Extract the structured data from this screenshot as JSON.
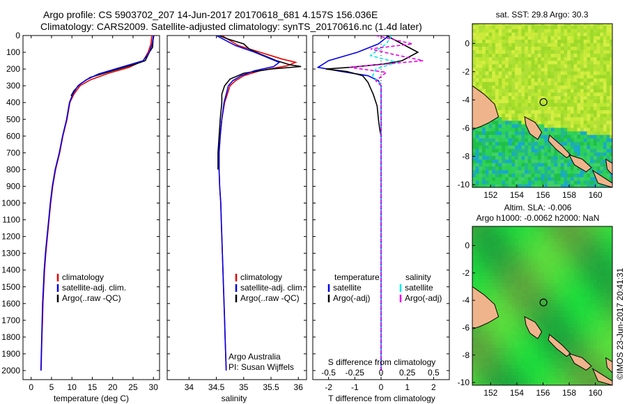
{
  "titles": {
    "line1": "Argo profile: CS 5903702_207 14-Jun-2017 20170618_681 4.157S 156.036E",
    "line2": "Climatology: CARS2009. Satellite-adjusted climatology: synTS_20170616.nc (1.4d later)"
  },
  "stamp": "©IMOS 23-Jun-2017 20:41:31",
  "chart_data": [
    {
      "type": "line",
      "panel": "temperature",
      "xlabel": "temperature (deg C)",
      "xlim": [
        -2,
        31.5
      ],
      "xticks": [
        0,
        5,
        10,
        15,
        20,
        25,
        30
      ],
      "ylim": [
        2050,
        0
      ],
      "yticks": [
        0,
        100,
        200,
        300,
        400,
        500,
        600,
        700,
        800,
        900,
        1000,
        1100,
        1200,
        1300,
        1400,
        1500,
        1600,
        1700,
        1800,
        1900,
        2000
      ],
      "legend": [
        "climatology",
        "satellite-adj. clim.",
        "Argo(..raw -QC)"
      ],
      "series": [
        {
          "name": "climatology",
          "color": "#e60000",
          "points": [
            [
              29.6,
              0
            ],
            [
              29.4,
              50
            ],
            [
              28.7,
              100
            ],
            [
              27.5,
              150
            ],
            [
              24.0,
              190
            ],
            [
              19.0,
              225
            ],
            [
              14.5,
              265
            ],
            [
              12.0,
              300
            ],
            [
              10.5,
              350
            ],
            [
              9.5,
              400
            ],
            [
              8.8,
              500
            ],
            [
              7.8,
              600
            ],
            [
              7.0,
              700
            ],
            [
              6.0,
              800
            ],
            [
              5.3,
              900
            ],
            [
              4.8,
              1000
            ],
            [
              4.4,
              1100
            ],
            [
              4.0,
              1200
            ],
            [
              3.6,
              1300
            ],
            [
              3.3,
              1400
            ],
            [
              3.1,
              1500
            ],
            [
              2.9,
              1600
            ],
            [
              2.8,
              1700
            ],
            [
              2.65,
              1800
            ],
            [
              2.55,
              1900
            ],
            [
              2.45,
              2000
            ]
          ]
        },
        {
          "name": "satellite-adj. clim.",
          "color": "#0000e6",
          "points": [
            [
              30.0,
              0
            ],
            [
              29.7,
              50
            ],
            [
              29.0,
              100
            ],
            [
              27.5,
              150
            ],
            [
              22.0,
              190
            ],
            [
              16.5,
              230
            ],
            [
              13.5,
              265
            ],
            [
              11.5,
              300
            ],
            [
              10.2,
              350
            ],
            [
              9.4,
              400
            ],
            [
              8.7,
              500
            ],
            [
              7.7,
              600
            ],
            [
              6.9,
              700
            ],
            [
              5.9,
              800
            ],
            [
              5.2,
              900
            ],
            [
              4.7,
              1000
            ],
            [
              4.3,
              1100
            ],
            [
              3.9,
              1200
            ],
            [
              3.5,
              1300
            ],
            [
              3.2,
              1400
            ],
            [
              3.0,
              1500
            ],
            [
              2.8,
              1600
            ],
            [
              2.7,
              1700
            ],
            [
              2.6,
              1800
            ],
            [
              2.5,
              1900
            ],
            [
              2.4,
              2000
            ]
          ]
        },
        {
          "name": "Argo(..raw -QC)",
          "color": "#000000",
          "points": [
            [
              30.1,
              0
            ],
            [
              29.9,
              30
            ],
            [
              29.8,
              70
            ],
            [
              29.0,
              100
            ],
            [
              28.0,
              150
            ],
            [
              25.0,
              175
            ],
            [
              20.0,
              210
            ],
            [
              14.5,
              250
            ],
            [
              12.0,
              290
            ],
            [
              10.5,
              330
            ],
            [
              9.8,
              360
            ]
          ]
        }
      ]
    },
    {
      "type": "line",
      "panel": "salinity",
      "xlabel": "salinity",
      "xlim": [
        33.6,
        36.15
      ],
      "xticks": [
        34,
        34.5,
        35,
        35.5,
        36
      ],
      "ylim": [
        2050,
        0
      ],
      "legend": [
        "climatology",
        "satellite-adj. clim.",
        "Argo(..raw -QC)"
      ],
      "annotation": [
        "Argo Australia",
        "PI: Susan Wijffels"
      ],
      "series": [
        {
          "name": "climatology",
          "color": "#e60000",
          "points": [
            [
              34.6,
              0
            ],
            [
              34.9,
              60
            ],
            [
              35.3,
              100
            ],
            [
              35.7,
              140
            ],
            [
              35.95,
              160
            ],
            [
              35.8,
              180
            ],
            [
              35.3,
              210
            ],
            [
              35.0,
              240
            ],
            [
              34.85,
              270
            ],
            [
              34.75,
              300
            ],
            [
              34.7,
              350
            ],
            [
              34.65,
              400
            ],
            [
              34.6,
              500
            ],
            [
              34.57,
              600
            ],
            [
              34.55,
              700
            ],
            [
              34.55,
              800
            ],
            [
              34.56,
              900
            ],
            [
              34.58,
              1000
            ],
            [
              34.59,
              1100
            ],
            [
              34.6,
              1200
            ],
            [
              34.61,
              1300
            ],
            [
              34.62,
              1400
            ],
            [
              34.63,
              1500
            ],
            [
              34.64,
              1600
            ],
            [
              34.65,
              1700
            ],
            [
              34.66,
              1800
            ],
            [
              34.67,
              1900
            ],
            [
              34.68,
              2000
            ]
          ]
        },
        {
          "name": "satellite-adj. clim.",
          "color": "#0000e6",
          "points": [
            [
              34.5,
              0
            ],
            [
              34.85,
              60
            ],
            [
              35.2,
              100
            ],
            [
              35.5,
              140
            ],
            [
              35.65,
              160
            ],
            [
              35.55,
              185
            ],
            [
              35.2,
              210
            ],
            [
              34.95,
              240
            ],
            [
              34.8,
              270
            ],
            [
              34.72,
              300
            ],
            [
              34.68,
              350
            ],
            [
              34.64,
              400
            ],
            [
              34.6,
              500
            ],
            [
              34.57,
              600
            ],
            [
              34.55,
              700
            ],
            [
              34.55,
              800
            ],
            [
              34.56,
              900
            ],
            [
              34.58,
              1000
            ],
            [
              34.59,
              1100
            ],
            [
              34.6,
              1200
            ],
            [
              34.61,
              1300
            ],
            [
              34.62,
              1400
            ],
            [
              34.63,
              1500
            ],
            [
              34.64,
              1600
            ],
            [
              34.65,
              1700
            ],
            [
              34.66,
              1800
            ],
            [
              34.67,
              1900
            ],
            [
              34.68,
              2000
            ]
          ]
        },
        {
          "name": "Argo(..raw -QC)",
          "color": "#000000",
          "points": [
            [
              34.55,
              0
            ],
            [
              34.7,
              20
            ],
            [
              35.0,
              50
            ],
            [
              35.1,
              80
            ],
            [
              35.3,
              110
            ],
            [
              35.6,
              150
            ],
            [
              35.85,
              175
            ],
            [
              36.05,
              185
            ],
            [
              35.5,
              200
            ],
            [
              35.0,
              225
            ],
            [
              34.75,
              260
            ],
            [
              34.65,
              300
            ],
            [
              34.6,
              350
            ],
            [
              34.6,
              400
            ],
            [
              34.57,
              500
            ],
            [
              34.55,
              600
            ],
            [
              34.53,
              700
            ],
            [
              34.53,
              800
            ]
          ]
        }
      ]
    },
    {
      "type": "line",
      "panel": "difference",
      "xlabel": "T difference from climatology",
      "xlabel_top": "S difference from climatology",
      "xlim": [
        -2.6,
        2.6
      ],
      "xticks": [
        -2,
        -1,
        0,
        1,
        2
      ],
      "xticks_top": [
        -0.5,
        -0.25,
        0,
        0.25,
        0.5
      ],
      "ylim": [
        2050,
        0
      ],
      "legend": {
        "temperature": [
          "temperature",
          "satellite",
          "Argo(-adj)"
        ],
        "salinity": [
          "salinity",
          "satellite",
          "Argo(-adj)"
        ]
      },
      "series": [
        {
          "name": "satellite",
          "group": "temperature",
          "color": "#0000e6",
          "points": [
            [
              0.3,
              0
            ],
            [
              -0.1,
              50
            ],
            [
              -0.9,
              100
            ],
            [
              -2.0,
              150
            ],
            [
              -2.4,
              190
            ],
            [
              -1.5,
              215
            ],
            [
              -0.5,
              240
            ],
            [
              -0.1,
              270
            ],
            [
              0,
              300
            ],
            [
              0,
              400
            ],
            [
              0,
              2000
            ]
          ]
        },
        {
          "name": "Argo(-adj)",
          "group": "temperature",
          "color": "#000000",
          "points": [
            [
              0.2,
              0
            ],
            [
              0.8,
              50
            ],
            [
              1.4,
              100
            ],
            [
              0.8,
              150
            ],
            [
              0.1,
              170
            ],
            [
              -1.2,
              190
            ],
            [
              -2.1,
              200
            ],
            [
              -1.3,
              215
            ],
            [
              -0.7,
              240
            ],
            [
              -0.5,
              280
            ],
            [
              -0.3,
              350
            ],
            [
              -0.15,
              420
            ],
            [
              -0.1,
              500
            ],
            [
              -0.05,
              560
            ],
            [
              0,
              600
            ]
          ]
        },
        {
          "name": "satellite",
          "group": "salinity",
          "color": "#00e6e6",
          "points": [
            [
              0.1,
              0
            ],
            [
              0.05,
              50
            ],
            [
              -0.02,
              80
            ],
            [
              -0.1,
              120
            ],
            [
              0.15,
              160
            ],
            [
              -0.05,
              200
            ],
            [
              -0.08,
              240
            ],
            [
              -0.02,
              280
            ],
            [
              0,
              300
            ],
            [
              0,
              1300
            ],
            [
              0,
              2000
            ]
          ]
        },
        {
          "name": "Argo(-adj)",
          "group": "salinity",
          "color": "#e600e6",
          "points": [
            [
              -0.05,
              0
            ],
            [
              0.3,
              50
            ],
            [
              -0.1,
              80
            ],
            [
              0.1,
              110
            ],
            [
              0.4,
              150
            ],
            [
              -0.3,
              190
            ],
            [
              0.05,
              220
            ],
            [
              -0.05,
              270
            ],
            [
              0,
              300
            ],
            [
              0,
              2000
            ]
          ]
        }
      ]
    },
    {
      "type": "heatmap",
      "panel": "sst-map",
      "title": "sat. SST: 29.8 Argo: 30.3",
      "xticks": [
        152,
        154,
        156,
        158,
        160
      ],
      "yticks": [
        0,
        -2,
        -4,
        -6,
        -8,
        -10
      ],
      "xlim": [
        150.6,
        161.3
      ],
      "ylim": [
        -10.2,
        1.4
      ],
      "marker": {
        "lon": 156.036,
        "lat": -4.157
      }
    },
    {
      "type": "heatmap",
      "panel": "sla-map",
      "title": "Altim. SLA: -0.006",
      "subtitle": "Argo h1000: -0.0062 h2000: NaN",
      "xticks": [
        152,
        154,
        156,
        158,
        160
      ],
      "yticks": [
        0,
        -2,
        -4,
        -6,
        -8,
        -10
      ],
      "xlim": [
        150.6,
        161.3
      ],
      "ylim": [
        -10.2,
        1.4
      ],
      "marker": {
        "lon": 156.036,
        "lat": -4.157
      }
    }
  ]
}
